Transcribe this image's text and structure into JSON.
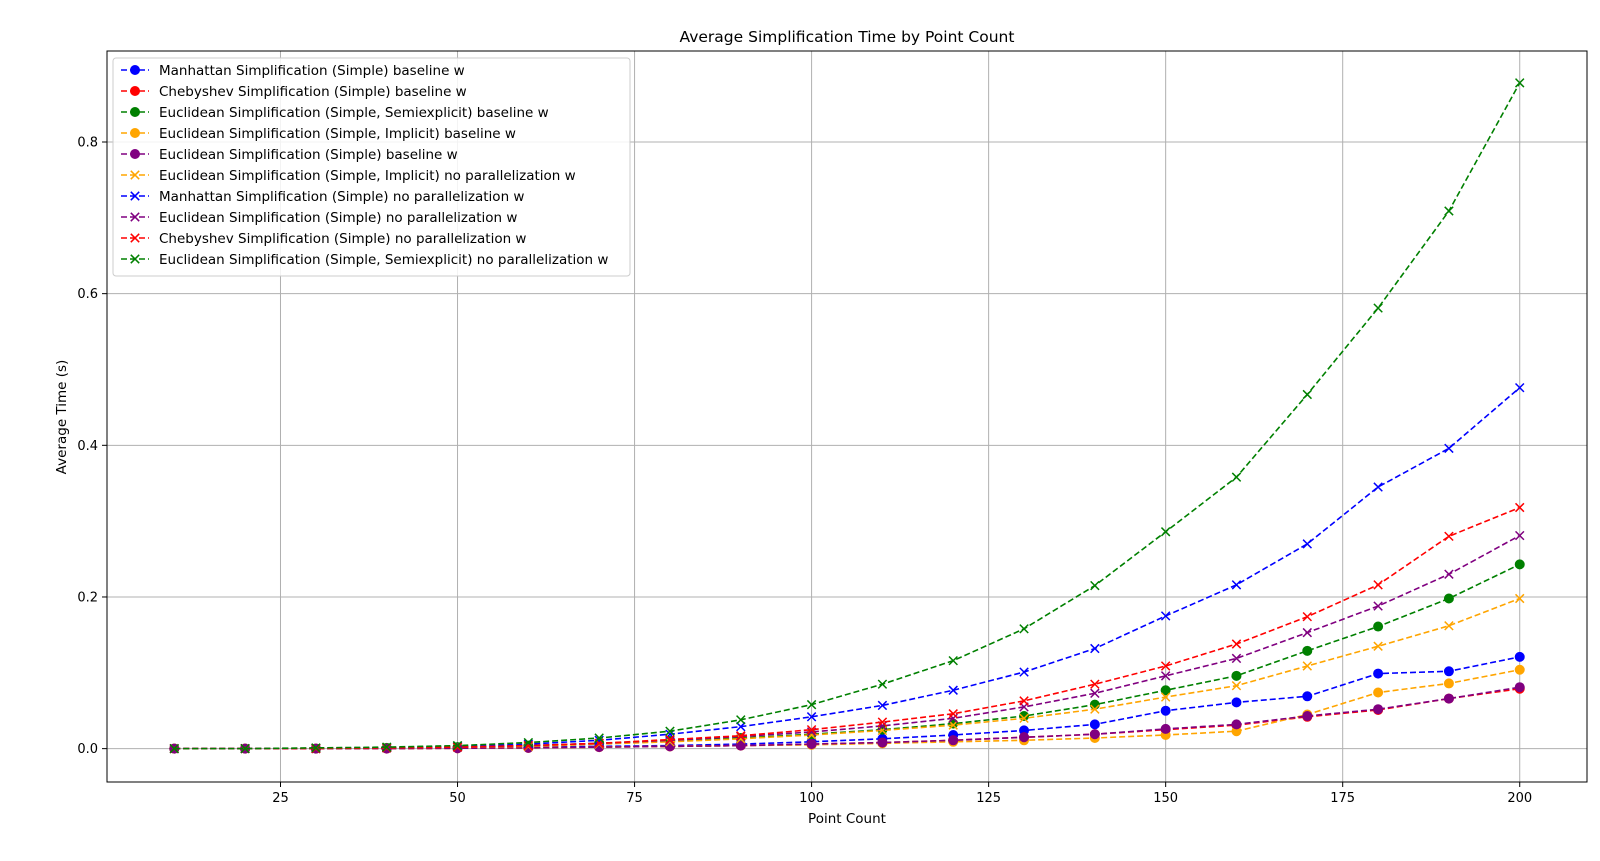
{
  "chart_data": {
    "type": "line",
    "title": "Average Simplification Time by Point Count",
    "xlabel": "Point Count",
    "ylabel": "Average Time (s)",
    "xlim": [
      0.5,
      209.5
    ],
    "ylim": [
      -0.044,
      0.92
    ],
    "xticks": [
      25,
      50,
      75,
      100,
      125,
      150,
      175,
      200
    ],
    "yticks": [
      0.0,
      0.2,
      0.4,
      0.6,
      0.8
    ],
    "ytick_labels": [
      "0.0",
      "0.2",
      "0.4",
      "0.6",
      "0.8"
    ],
    "grid": true,
    "legend_position": "upper-left",
    "x": [
      10,
      20,
      30,
      40,
      50,
      60,
      70,
      80,
      90,
      100,
      110,
      120,
      130,
      140,
      150,
      160,
      170,
      180,
      190,
      200
    ],
    "series": [
      {
        "name": "Manhattan Simplification (Simple) baseline w",
        "color": "#0000ff",
        "marker": "circle",
        "values": [
          0,
          0,
          0,
          0.0005,
          0.001,
          0.002,
          0.003,
          0.004,
          0.006,
          0.009,
          0.013,
          0.018,
          0.024,
          0.032,
          0.05,
          0.061,
          0.069,
          0.099,
          0.102,
          0.121
        ]
      },
      {
        "name": "Chebyshev Simplification (Simple) baseline w",
        "color": "#ff0000",
        "marker": "circle",
        "values": [
          0,
          0,
          0,
          0,
          0.0005,
          0.001,
          0.002,
          0.003,
          0.004,
          0.006,
          0.008,
          0.011,
          0.015,
          0.019,
          0.025,
          0.031,
          0.042,
          0.051,
          0.066,
          0.079
        ]
      },
      {
        "name": "Euclidean Simplification (Simple, Semiexplicit) baseline w",
        "color": "#008000",
        "marker": "circle",
        "values": [
          0,
          0,
          0,
          0.001,
          0.002,
          0.004,
          0.007,
          0.01,
          0.014,
          0.019,
          0.025,
          0.033,
          0.043,
          0.058,
          0.077,
          0.096,
          0.129,
          0.161,
          0.198,
          0.243
        ]
      },
      {
        "name": "Euclidean Simplification (Simple, Implicit) baseline w",
        "color": "#ffa500",
        "marker": "circle",
        "values": [
          0,
          0,
          0,
          0,
          0.0005,
          0.001,
          0.002,
          0.003,
          0.004,
          0.005,
          0.007,
          0.009,
          0.011,
          0.014,
          0.018,
          0.023,
          0.045,
          0.074,
          0.086,
          0.104
        ]
      },
      {
        "name": "Euclidean Simplification (Simple) baseline w",
        "color": "#800080",
        "marker": "circle",
        "values": [
          0,
          0,
          0,
          0,
          0.0005,
          0.001,
          0.002,
          0.003,
          0.004,
          0.006,
          0.008,
          0.011,
          0.015,
          0.019,
          0.026,
          0.032,
          0.043,
          0.052,
          0.066,
          0.081
        ]
      },
      {
        "name": "Euclidean Simplification (Simple, Implicit) no parallelization w",
        "color": "#ffa500",
        "marker": "x",
        "values": [
          0,
          0,
          0,
          0.001,
          0.002,
          0.003,
          0.006,
          0.009,
          0.013,
          0.018,
          0.024,
          0.031,
          0.04,
          0.052,
          0.068,
          0.083,
          0.109,
          0.135,
          0.162,
          0.198
        ]
      },
      {
        "name": "Manhattan Simplification (Simple) no parallelization w",
        "color": "#0000ff",
        "marker": "x",
        "values": [
          0,
          0,
          0,
          0.001,
          0.003,
          0.006,
          0.011,
          0.019,
          0.029,
          0.042,
          0.057,
          0.077,
          0.101,
          0.132,
          0.175,
          0.216,
          0.27,
          0.345,
          0.396,
          0.476
        ]
      },
      {
        "name": "Euclidean Simplification (Simple) no parallelization w",
        "color": "#800080",
        "marker": "x",
        "values": [
          0,
          0,
          0,
          0.001,
          0.002,
          0.004,
          0.007,
          0.011,
          0.016,
          0.022,
          0.03,
          0.04,
          0.055,
          0.073,
          0.096,
          0.119,
          0.153,
          0.188,
          0.23,
          0.281
        ]
      },
      {
        "name": "Chebyshev Simplification (Simple) no parallelization w",
        "color": "#ff0000",
        "marker": "x",
        "values": [
          0,
          0,
          0,
          0.001,
          0.002,
          0.004,
          0.007,
          0.012,
          0.017,
          0.025,
          0.035,
          0.046,
          0.063,
          0.085,
          0.109,
          0.138,
          0.174,
          0.216,
          0.28,
          0.318
        ]
      },
      {
        "name": "Euclidean Simplification (Simple, Semiexplicit) no parallelization w",
        "color": "#008000",
        "marker": "x",
        "values": [
          0,
          0,
          0.001,
          0.002,
          0.004,
          0.008,
          0.014,
          0.023,
          0.038,
          0.058,
          0.085,
          0.116,
          0.158,
          0.215,
          0.286,
          0.358,
          0.467,
          0.581,
          0.709,
          0.878
        ]
      }
    ]
  }
}
